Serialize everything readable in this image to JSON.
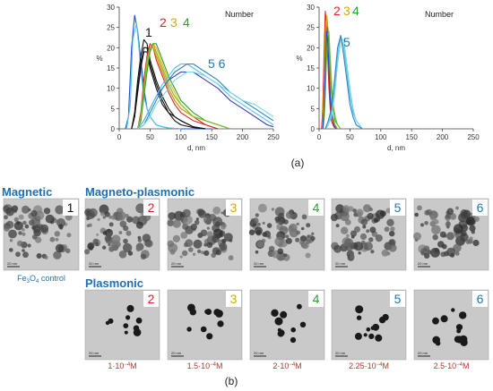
{
  "chart_data": [
    {
      "type": "line",
      "panel_label": "Number",
      "xlabel": "d, nm",
      "ylabel": "%",
      "xlim": [
        0,
        250
      ],
      "ylim": [
        0,
        30
      ],
      "x_ticks": [
        "0",
        "50",
        "100",
        "150",
        "200",
        "250"
      ],
      "y_ticks": [
        "0",
        "5",
        "10",
        "15",
        "20",
        "25",
        "30"
      ],
      "grid": false,
      "sample_labels": [
        {
          "text": "1",
          "color": "#111111"
        },
        {
          "text": "2",
          "color": "#d62728"
        },
        {
          "text": "3",
          "color": "#d6a800"
        },
        {
          "text": "4",
          "color": "#2ca02c"
        },
        {
          "text": "5 6",
          "color": "#1f77b4"
        }
      ],
      "series": [
        {
          "color": "#1a4fd6",
          "x": [
            10,
            15,
            20,
            25,
            30,
            35,
            40,
            45,
            50,
            55,
            60,
            70,
            80,
            100,
            150
          ],
          "values": [
            0,
            3,
            20,
            28,
            24,
            17,
            10,
            5,
            3,
            2,
            1,
            0.5,
            0.2,
            0,
            0
          ]
        },
        {
          "color": "#4fc3e8",
          "x": [
            12,
            18,
            22,
            28,
            32,
            36,
            40,
            45,
            50,
            55,
            60,
            70,
            80,
            100
          ],
          "values": [
            0,
            6,
            22,
            26,
            20,
            13,
            8,
            5,
            3,
            2,
            1,
            0.5,
            0.2,
            0
          ]
        },
        {
          "color": "#111111",
          "x": [
            20,
            25,
            30,
            35,
            40,
            45,
            50,
            60,
            70,
            80,
            90,
            100,
            120,
            140
          ],
          "values": [
            0,
            4,
            12,
            18,
            22,
            21,
            17,
            12,
            8,
            5,
            3,
            2,
            0.5,
            0
          ]
        },
        {
          "color": "#111111",
          "x": [
            20,
            25,
            30,
            35,
            40,
            45,
            50,
            60,
            70,
            80,
            90,
            100,
            120,
            140
          ],
          "values": [
            0,
            3,
            10,
            16,
            20,
            20,
            16,
            11,
            7,
            4,
            3,
            2,
            0.5,
            0
          ]
        },
        {
          "color": "#111111",
          "x": [
            20,
            25,
            30,
            35,
            40,
            45,
            50,
            60,
            70,
            80,
            90,
            100,
            120,
            140
          ],
          "values": [
            0,
            3,
            9,
            15,
            19,
            19,
            15,
            10,
            6,
            4,
            2,
            1,
            0.3,
            0
          ]
        },
        {
          "color": "#d62728",
          "x": [
            30,
            35,
            40,
            45,
            50,
            55,
            60,
            70,
            80,
            90,
            100,
            120,
            140,
            160
          ],
          "values": [
            0,
            4,
            12,
            18,
            21,
            20,
            18,
            14,
            10,
            7,
            5,
            3,
            1,
            0
          ]
        },
        {
          "color": "#d62728",
          "x": [
            30,
            35,
            40,
            45,
            50,
            55,
            60,
            70,
            80,
            90,
            100,
            120,
            140,
            160
          ],
          "values": [
            0,
            3,
            10,
            17,
            20,
            20,
            17,
            13,
            9,
            6,
            4,
            2,
            1,
            0
          ]
        },
        {
          "color": "#ff7f0e",
          "x": [
            30,
            35,
            40,
            45,
            50,
            55,
            60,
            70,
            80,
            90,
            100,
            120,
            140,
            160,
            180
          ],
          "values": [
            0,
            2,
            9,
            16,
            20,
            21,
            19,
            15,
            11,
            8,
            6,
            3,
            2,
            1,
            0
          ]
        },
        {
          "color": "#c8a800",
          "x": [
            30,
            35,
            40,
            45,
            50,
            55,
            60,
            70,
            80,
            90,
            100,
            120,
            140,
            160,
            180
          ],
          "values": [
            0,
            3,
            10,
            17,
            20,
            20,
            18,
            14,
            10,
            7,
            5,
            3,
            2,
            1,
            0
          ]
        },
        {
          "color": "#e5c000",
          "x": [
            30,
            35,
            40,
            45,
            50,
            55,
            60,
            70,
            80,
            90,
            100,
            120,
            140,
            160,
            180
          ],
          "values": [
            0,
            2,
            8,
            15,
            19,
            21,
            20,
            16,
            12,
            9,
            6,
            3,
            2,
            1,
            0
          ]
        },
        {
          "color": "#2ca02c",
          "x": [
            30,
            35,
            40,
            45,
            50,
            55,
            60,
            70,
            80,
            90,
            100,
            120,
            140,
            160,
            180
          ],
          "values": [
            0,
            2,
            8,
            14,
            19,
            21,
            21,
            17,
            13,
            10,
            7,
            4,
            2,
            1,
            0
          ]
        },
        {
          "color": "#7cc242",
          "x": [
            30,
            35,
            40,
            45,
            50,
            55,
            60,
            70,
            80,
            90,
            100,
            120,
            140,
            160,
            180
          ],
          "values": [
            0,
            3,
            10,
            16,
            20,
            20,
            19,
            15,
            11,
            8,
            6,
            3,
            2,
            1,
            0
          ]
        },
        {
          "color": "#3b3bb8",
          "x": [
            30,
            40,
            50,
            60,
            70,
            80,
            90,
            100,
            110,
            120,
            140,
            160,
            180,
            200,
            220,
            240,
            250
          ],
          "values": [
            0,
            2,
            5,
            8,
            10,
            12,
            13,
            14,
            14,
            14,
            12,
            10,
            7,
            5,
            3,
            1,
            0.5
          ]
        },
        {
          "color": "#5bc0de",
          "x": [
            30,
            40,
            50,
            60,
            70,
            80,
            90,
            100,
            110,
            120,
            140,
            160,
            180,
            200,
            220,
            240,
            250
          ],
          "values": [
            0,
            2,
            5,
            8,
            11,
            13,
            15,
            16,
            16,
            15,
            13,
            11,
            8,
            6,
            4,
            2,
            1
          ]
        },
        {
          "color": "#2e86c1",
          "x": [
            30,
            40,
            50,
            60,
            70,
            80,
            90,
            100,
            110,
            120,
            140,
            160,
            180,
            200,
            220,
            240,
            250
          ],
          "values": [
            0,
            1,
            4,
            7,
            10,
            12,
            14,
            15,
            16,
            16,
            14,
            12,
            9,
            7,
            5,
            3,
            2
          ]
        },
        {
          "color": "#76d7ea",
          "x": [
            30,
            40,
            50,
            60,
            70,
            80,
            90,
            100,
            110,
            120,
            140,
            160,
            180,
            200,
            220,
            240,
            250
          ],
          "values": [
            0,
            1,
            3,
            6,
            8,
            10,
            12,
            13,
            14,
            14,
            13,
            11,
            9,
            7,
            6,
            4,
            3
          ]
        }
      ]
    },
    {
      "type": "line",
      "panel_label": "Number",
      "xlabel": "d, nm",
      "ylabel": "%",
      "xlim": [
        0,
        250
      ],
      "ylim": [
        0,
        30
      ],
      "x_ticks": [
        "0",
        "50",
        "100",
        "150",
        "200",
        "250"
      ],
      "y_ticks": [
        "0",
        "5",
        "10",
        "15",
        "20",
        "25",
        "30"
      ],
      "grid": false,
      "sample_labels": [
        {
          "text": "2",
          "color": "#d62728"
        },
        {
          "text": "3",
          "color": "#d6a800"
        },
        {
          "text": "4",
          "color": "#2ca02c"
        },
        {
          "text": "5",
          "color": "#1f77b4"
        }
      ],
      "series": [
        {
          "color": "#d62728",
          "x": [
            4,
            6,
            8,
            10,
            12,
            14,
            16,
            18,
            20,
            24,
            28
          ],
          "values": [
            0,
            5,
            18,
            29,
            26,
            18,
            10,
            5,
            2,
            0.5,
            0
          ]
        },
        {
          "color": "#d62728",
          "x": [
            4,
            6,
            8,
            10,
            12,
            14,
            16,
            18,
            20,
            24,
            28
          ],
          "values": [
            0,
            4,
            15,
            27,
            27,
            20,
            12,
            6,
            2,
            0.5,
            0
          ]
        },
        {
          "color": "#e5c000",
          "x": [
            5,
            7,
            9,
            11,
            13,
            15,
            17,
            19,
            22,
            26,
            30
          ],
          "values": [
            0,
            5,
            16,
            26,
            28,
            22,
            14,
            7,
            3,
            1,
            0
          ]
        },
        {
          "color": "#c8a800",
          "x": [
            5,
            7,
            9,
            11,
            13,
            15,
            17,
            19,
            22,
            26,
            30
          ],
          "values": [
            0,
            4,
            14,
            24,
            27,
            23,
            15,
            8,
            3,
            1,
            0
          ]
        },
        {
          "color": "#2ca02c",
          "x": [
            6,
            8,
            10,
            12,
            14,
            16,
            18,
            20,
            22,
            26,
            30,
            35
          ],
          "values": [
            0,
            3,
            10,
            20,
            25,
            22,
            16,
            10,
            6,
            2,
            1,
            0
          ]
        },
        {
          "color": "#7cc242",
          "x": [
            6,
            8,
            10,
            12,
            14,
            16,
            18,
            20,
            22,
            26,
            30,
            35
          ],
          "values": [
            0,
            2,
            8,
            17,
            23,
            24,
            18,
            12,
            7,
            3,
            1,
            0
          ]
        },
        {
          "color": "#1a4fd6",
          "x": [
            6,
            8,
            10,
            12,
            14,
            16,
            18,
            20,
            24,
            28
          ],
          "values": [
            0,
            4,
            14,
            24,
            22,
            15,
            8,
            4,
            1,
            0
          ]
        },
        {
          "color": "#5bc0de",
          "x": [
            10,
            15,
            20,
            25,
            30,
            35,
            40,
            45,
            50,
            55,
            60,
            70
          ],
          "values": [
            0,
            1,
            4,
            10,
            18,
            23,
            20,
            14,
            8,
            4,
            2,
            0
          ]
        },
        {
          "color": "#76d7ea",
          "x": [
            10,
            15,
            20,
            25,
            30,
            35,
            40,
            45,
            50,
            55,
            60,
            70
          ],
          "values": [
            0,
            1,
            3,
            8,
            16,
            22,
            22,
            16,
            10,
            5,
            2,
            0
          ]
        },
        {
          "color": "#2e86c1",
          "x": [
            10,
            15,
            20,
            25,
            30,
            35,
            40,
            45,
            50,
            55,
            60,
            70
          ],
          "values": [
            0,
            2,
            5,
            12,
            20,
            23,
            18,
            12,
            6,
            3,
            1,
            0
          ]
        }
      ]
    }
  ],
  "figure": {
    "label_a": "(a)",
    "label_b": "(b)"
  },
  "tem": {
    "header_magnetic": "Magnetic",
    "header_magnetoplasmonic": "Magneto-plasmonic",
    "header_plasmonic": "Plasmonic",
    "scale_text": "20 nm",
    "control_caption_prefix": "Fe",
    "control_caption_sub": "3",
    "control_caption_mid": "O",
    "control_caption_sub2": "4",
    "control_caption_suffix": " control",
    "top_row": [
      {
        "num": "1",
        "color": "#111111"
      },
      {
        "num": "2",
        "color": "#d62728"
      },
      {
        "num": "3",
        "color": "#d6a800"
      },
      {
        "num": "4",
        "color": "#2ca02c"
      },
      {
        "num": "5",
        "color": "#1f77b4"
      },
      {
        "num": "6",
        "color": "#1f77b4"
      }
    ],
    "bottom_row": [
      {
        "num": "2",
        "color": "#d62728",
        "conc_mant": "1·10",
        "conc_exp": "−4",
        "conc_unit": "M"
      },
      {
        "num": "3",
        "color": "#d6a800",
        "conc_mant": "1.5·10",
        "conc_exp": "−4",
        "conc_unit": "M"
      },
      {
        "num": "4",
        "color": "#2ca02c",
        "conc_mant": "2·10",
        "conc_exp": "−4",
        "conc_unit": "M"
      },
      {
        "num": "5",
        "color": "#1f77b4",
        "conc_mant": "2.25·10",
        "conc_exp": "−4",
        "conc_unit": "M"
      },
      {
        "num": "6",
        "color": "#1f77b4",
        "conc_mant": "2.5·10",
        "conc_exp": "−4",
        "conc_unit": "M"
      }
    ],
    "header_color": "#1f6fb2",
    "conc_color": "#b03a2e"
  }
}
